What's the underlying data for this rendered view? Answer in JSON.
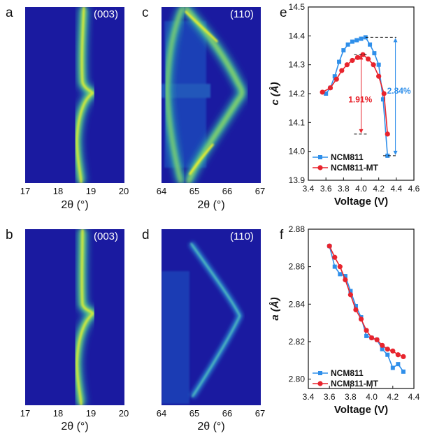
{
  "panels": {
    "a": {
      "letter": "a",
      "hkl": "(003)",
      "xticks": [
        "17",
        "18",
        "19",
        "20"
      ],
      "xlabel": "2θ (°)"
    },
    "b": {
      "letter": "b",
      "hkl": "(003)",
      "xticks": [
        "17",
        "18",
        "19",
        "20"
      ],
      "xlabel": "2θ (°)"
    },
    "c": {
      "letter": "c",
      "hkl": "(110)",
      "xticks": [
        "64",
        "65",
        "66",
        "67"
      ],
      "xlabel": "2θ (°)"
    },
    "d": {
      "letter": "d",
      "hkl": "(110)",
      "xticks": [
        "64",
        "65",
        "66",
        "67"
      ],
      "xlabel": "2θ (°)"
    },
    "e": {
      "letter": "e"
    },
    "f": {
      "letter": "f"
    }
  },
  "colors": {
    "background_map": "#1a1aa0",
    "ncm811": "#2f8fea",
    "ncm811_mt": "#e8242d"
  },
  "chart_data": [
    {
      "type": "line",
      "xlabel": "Voltage (V)",
      "ylabel": "c (Å)",
      "xlim": [
        3.4,
        4.6
      ],
      "ylim": [
        13.9,
        14.5
      ],
      "xticks": [
        "3.4",
        "3.6",
        "3.8",
        "4.0",
        "4.2",
        "4.4",
        "4.6"
      ],
      "yticks": [
        "13.9",
        "14.0",
        "14.1",
        "14.2",
        "14.3",
        "14.4",
        "14.5"
      ],
      "legend_position": "bottom-left",
      "annotations": [
        "1.91%",
        "2.84%"
      ],
      "series": [
        {
          "name": "NCM811",
          "color": "#2f8fea",
          "marker": "square",
          "x": [
            3.6,
            3.65,
            3.7,
            3.75,
            3.8,
            3.85,
            3.9,
            3.95,
            4.0,
            4.05,
            4.1,
            4.15,
            4.2,
            4.25,
            4.3
          ],
          "y": [
            14.2,
            14.22,
            14.26,
            14.31,
            14.35,
            14.37,
            14.38,
            14.385,
            14.39,
            14.395,
            14.37,
            14.34,
            14.3,
            14.18,
            13.985
          ]
        },
        {
          "name": "NCM811-MT",
          "color": "#e8242d",
          "marker": "circle",
          "x": [
            3.56,
            3.65,
            3.72,
            3.78,
            3.84,
            3.9,
            3.96,
            4.02,
            4.08,
            4.14,
            4.2,
            4.26,
            4.3
          ],
          "y": [
            14.205,
            14.22,
            14.25,
            14.28,
            14.3,
            14.315,
            14.325,
            14.335,
            14.32,
            14.3,
            14.26,
            14.2,
            14.06
          ]
        }
      ]
    },
    {
      "type": "line",
      "xlabel": "Voltage (V)",
      "ylabel": "a (Å)",
      "xlim": [
        3.4,
        4.4
      ],
      "ylim": [
        2.795,
        2.88
      ],
      "xticks": [
        "3.4",
        "3.6",
        "3.8",
        "4.0",
        "4.2",
        "4.4"
      ],
      "yticks": [
        "2.80",
        "2.82",
        "2.84",
        "2.86",
        "2.88"
      ],
      "legend_position": "bottom-left",
      "series": [
        {
          "name": "NCM811",
          "color": "#2f8fea",
          "marker": "square",
          "x": [
            3.6,
            3.65,
            3.7,
            3.75,
            3.8,
            3.85,
            3.9,
            3.95,
            4.0,
            4.05,
            4.1,
            4.15,
            4.2,
            4.25,
            4.3
          ],
          "y": [
            2.871,
            2.86,
            2.856,
            2.855,
            2.847,
            2.839,
            2.833,
            2.823,
            2.822,
            2.821,
            2.816,
            2.813,
            2.806,
            2.808,
            2.804
          ]
        },
        {
          "name": "NCM811-MT",
          "color": "#e8242d",
          "marker": "circle",
          "x": [
            3.6,
            3.65,
            3.7,
            3.75,
            3.8,
            3.85,
            3.9,
            3.95,
            4.0,
            4.05,
            4.1,
            4.15,
            4.2,
            4.25,
            4.3
          ],
          "y": [
            2.871,
            2.865,
            2.86,
            2.853,
            2.845,
            2.837,
            2.832,
            2.826,
            2.822,
            2.821,
            2.818,
            2.816,
            2.815,
            2.813,
            2.812
          ]
        }
      ]
    }
  ]
}
